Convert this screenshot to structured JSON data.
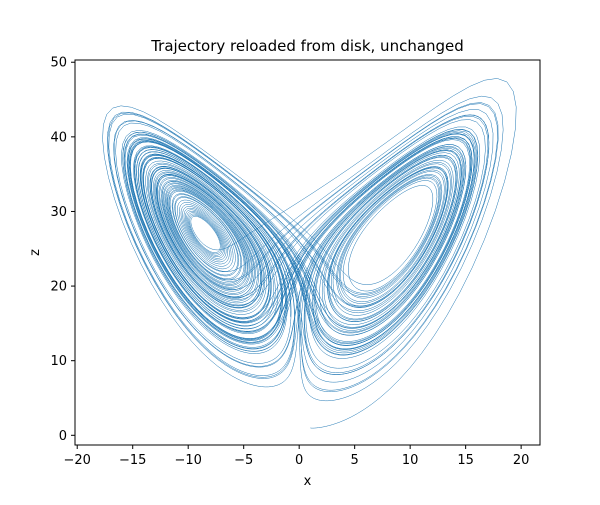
{
  "chart_data": {
    "type": "line",
    "title": "Trajectory reloaded from disk, unchanged",
    "xlabel": "x",
    "ylabel": "z",
    "xlim": [
      -20.2,
      21.7
    ],
    "ylim": [
      -1.3,
      50.3
    ],
    "xticks": [
      -20,
      -15,
      -10,
      -5,
      0,
      5,
      10,
      15,
      20
    ],
    "yticks": [
      0,
      10,
      20,
      30,
      40,
      50
    ],
    "grid": false,
    "legend": "none",
    "series": [
      {
        "color": "#1f77b4",
        "generator": "lorenz",
        "sigma": 10,
        "rho": 28,
        "beta": 2.6667,
        "start": [
          1,
          1,
          1
        ],
        "dt": 0.01,
        "steps": 10000
      }
    ]
  }
}
